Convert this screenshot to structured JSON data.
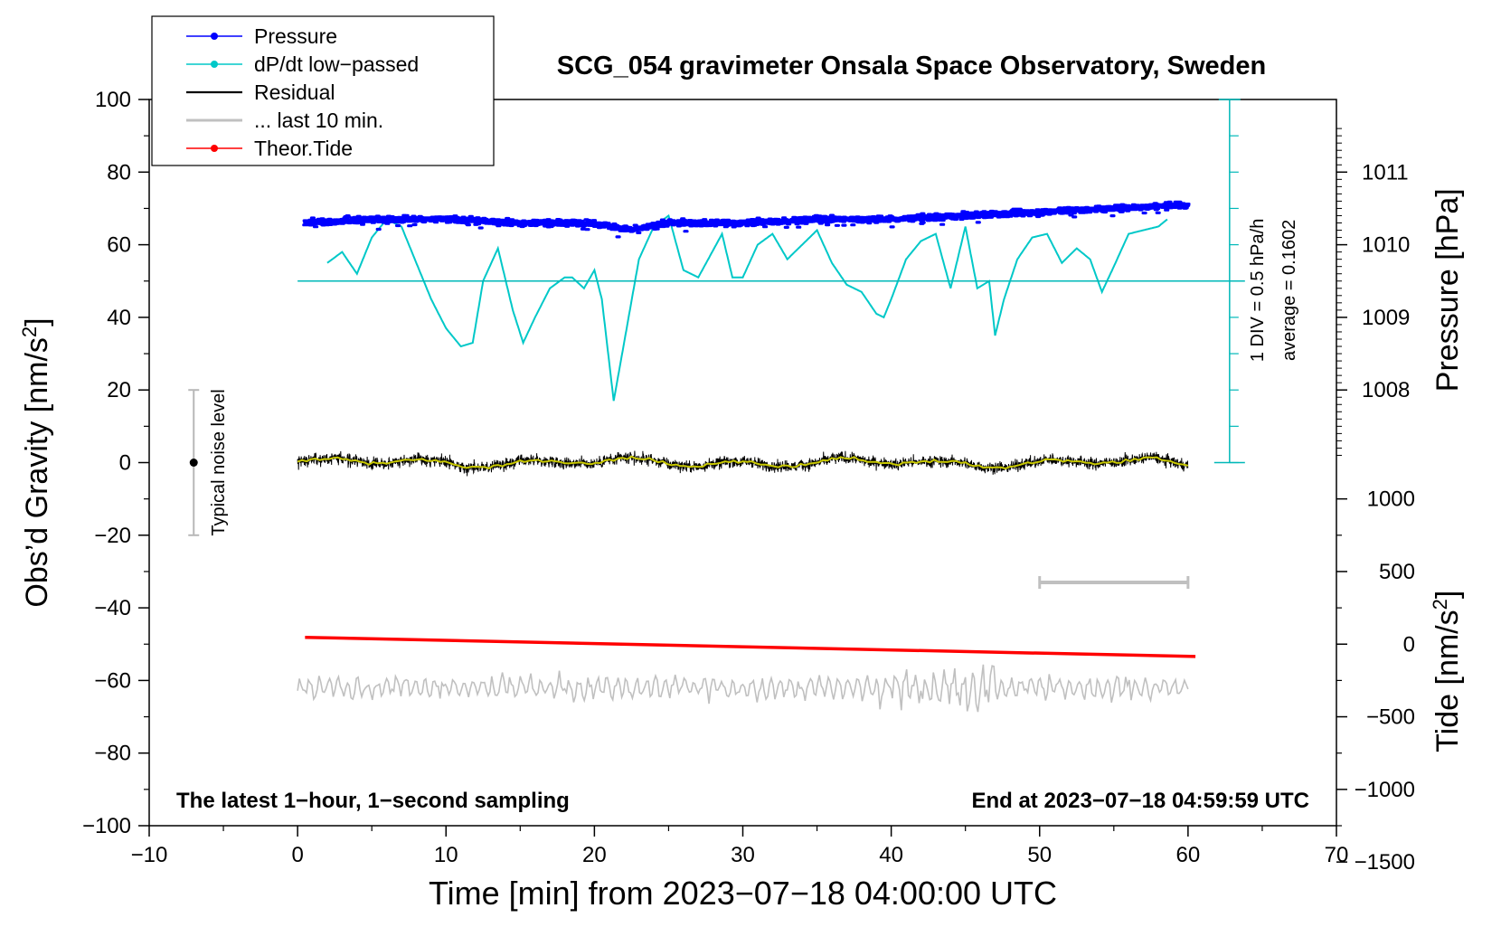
{
  "chart_data": {
    "type": "line",
    "title": "SCG_054 gravimeter Onsala Space Observatory, Sweden",
    "xlabel": "Time [min] from 2023−07−18 04:00:00 UTC",
    "ylabel_left": "Obs’d Gravity [nm/s",
    "ylabel_left_sup": "2",
    "ylabel_left_close": "]",
    "ylabel_right_pressure": "Pressure [hPa]",
    "ylabel_right_tide": "Tide [nm/s",
    "ylabel_right_tide_sup": "2",
    "ylabel_right_tide_close": "]",
    "xlim": [
      -10,
      70
    ],
    "ylim_left": [
      -100,
      100
    ],
    "x_ticks": [
      "−10",
      "0",
      "10",
      "20",
      "30",
      "40",
      "50",
      "60",
      "70"
    ],
    "x_tick_values": [
      -10,
      0,
      10,
      20,
      30,
      40,
      50,
      60,
      70
    ],
    "y_ticks_left": [
      "−100",
      "−80",
      "−60",
      "−40",
      "−20",
      "0",
      "20",
      "40",
      "60",
      "80",
      "100"
    ],
    "y_tick_values_left": [
      -100,
      -80,
      -60,
      -40,
      -20,
      0,
      20,
      40,
      60,
      80,
      100
    ],
    "pressure_ticks": [
      "1008",
      "1009",
      "1010",
      "1011"
    ],
    "pressure_tick_values": [
      1008,
      1009,
      1010,
      1011
    ],
    "pressure_reference": {
      "hpa": 1008,
      "gravity": 20
    },
    "pressure_scale_nm_per_hpa": 20,
    "tide_ticks": [
      "1000",
      "500",
      "0",
      "−500",
      "−1000",
      "−1500"
    ],
    "tide_tick_values": [
      1000,
      500,
      0,
      -500,
      -1000,
      -1500
    ],
    "tide_reference": {
      "tide": 0,
      "gravity": -50
    },
    "tide_scale_gravity_per_nm": 0.04,
    "legend": [
      {
        "label": "Pressure",
        "color": "#0000ff",
        "marker": true
      },
      {
        "label": "dP/dt low−passed",
        "color": "#00c8c8",
        "marker": true
      },
      {
        "label": "Residual",
        "color": "#000000",
        "marker": false
      },
      {
        "label": "... last 10 min.",
        "color": "#c0c0c0",
        "marker": false
      },
      {
        "label": "Theor.Tide",
        "color": "#ff0000",
        "marker": true
      }
    ],
    "legend_position": "top-left",
    "annotations": {
      "noise_label": "Typical noise level",
      "noise_bar": {
        "x": -7,
        "low": -20,
        "high": 20,
        "center": 0
      },
      "div_label": "1 DIV = 0.5 hPa/h",
      "average_label": "average = 0.1602",
      "dpdt_baseline": 50,
      "dpdt_scale_bar": {
        "x": 62.8,
        "low": 0,
        "high": 100,
        "divisions": 10
      },
      "window_bar": {
        "x_start": 50,
        "x_end": 60,
        "y": -33
      },
      "bottom_left": "The latest 1−hour, 1−second sampling",
      "bottom_right": "End at 2023−07−18 04:59:59 UTC"
    },
    "series": [
      {
        "name": "Pressure",
        "unit": "hPa",
        "x": [
          0.5,
          5,
          10,
          15,
          20,
          22.5,
          25,
          30,
          35,
          40,
          45,
          50,
          55,
          60
        ],
        "values": [
          1010.3,
          1010.35,
          1010.35,
          1010.3,
          1010.3,
          1010.2,
          1010.3,
          1010.3,
          1010.35,
          1010.35,
          1010.4,
          1010.45,
          1010.5,
          1010.55
        ]
      },
      {
        "name": "dP/dt low−passed",
        "x": [
          2,
          3,
          4,
          5,
          6,
          7,
          8,
          9,
          10,
          11,
          11.8,
          12.5,
          13.5,
          14.5,
          15.2,
          16,
          17,
          18,
          18.5,
          19.3,
          20,
          20.5,
          21.3,
          22,
          23,
          24,
          25,
          26,
          27,
          27.8,
          28.6,
          29.3,
          30,
          31,
          32,
          33,
          34,
          35,
          36,
          37,
          38,
          39,
          39.5,
          40,
          41,
          42,
          43,
          44,
          45,
          45.8,
          46.6,
          47,
          47.6,
          48.5,
          49.5,
          50.5,
          51.5,
          52.5,
          53.4,
          54.2,
          55,
          56,
          57,
          58,
          58.6
        ],
        "values": [
          55,
          58,
          52,
          62,
          67,
          65,
          55,
          45,
          37,
          32,
          33,
          50,
          59,
          42,
          33,
          40,
          48,
          51,
          51,
          48,
          53,
          45,
          17,
          33,
          56,
          65,
          68,
          53,
          51,
          57,
          63,
          51,
          51,
          60,
          63,
          56,
          60,
          64,
          55,
          49,
          47,
          41,
          40,
          45,
          56,
          61,
          63,
          48,
          65,
          48,
          50,
          35,
          45,
          56,
          62,
          63,
          55,
          59,
          56,
          47,
          54,
          63,
          64,
          65,
          67
        ]
      },
      {
        "name": "Residual",
        "x": [
          0,
          60
        ],
        "values": [
          0,
          0
        ],
        "noise_amplitude": 3
      },
      {
        "name": "... last 10 min.",
        "x": [
          0,
          60
        ],
        "values": [
          -62,
          -62
        ],
        "noise_amplitude": 4
      },
      {
        "name": "Theor.Tide",
        "unit": "nm/s2",
        "x": [
          0.5,
          60.5
        ],
        "values": [
          47,
          -85
        ]
      }
    ]
  }
}
